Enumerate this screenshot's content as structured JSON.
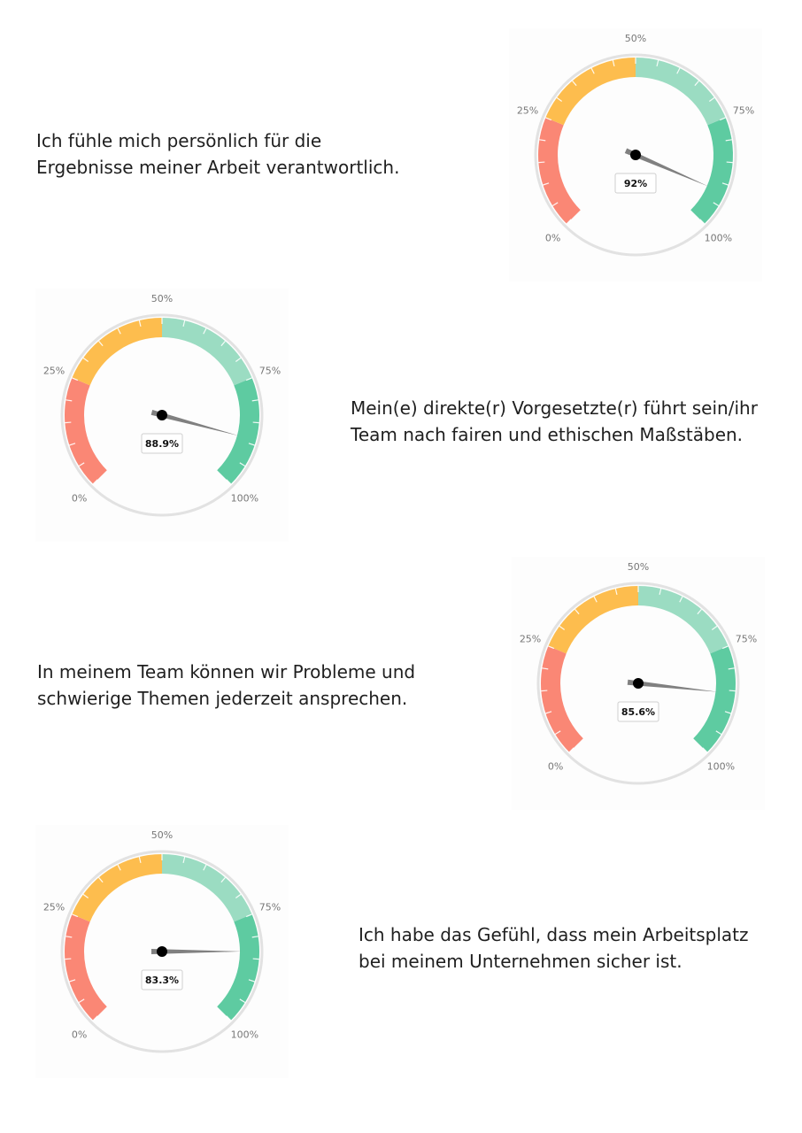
{
  "chart_data": [
    {
      "type": "gauge",
      "statement": [
        "Ich fühle mich persönlich für die",
        "Ergebnisse meiner Arbeit verantwortlich."
      ],
      "value": 92,
      "value_label": "92%",
      "range": [
        0,
        100
      ],
      "tick_labels": [
        "0%",
        "25%",
        "50%",
        "75%",
        "100%"
      ],
      "bands": [
        {
          "from": 0,
          "to": 25,
          "color": "#fa8775"
        },
        {
          "from": 25,
          "to": 50,
          "color": "#fdbd4e"
        },
        {
          "from": 50,
          "to": 75,
          "color": "#9bdcc2"
        },
        {
          "from": 75,
          "to": 100,
          "color": "#5ecba1"
        }
      ]
    },
    {
      "type": "gauge",
      "statement": [
        "Mein(e) direkte(r) Vorgesetzte(r) führt sein/ihr",
        "Team nach fairen und ethischen Maßstäben."
      ],
      "value": 88.9,
      "value_label": "88.9%",
      "range": [
        0,
        100
      ],
      "tick_labels": [
        "0%",
        "25%",
        "50%",
        "75%",
        "100%"
      ],
      "bands": [
        {
          "from": 0,
          "to": 25,
          "color": "#fa8775"
        },
        {
          "from": 25,
          "to": 50,
          "color": "#fdbd4e"
        },
        {
          "from": 50,
          "to": 75,
          "color": "#9bdcc2"
        },
        {
          "from": 75,
          "to": 100,
          "color": "#5ecba1"
        }
      ]
    },
    {
      "type": "gauge",
      "statement": [
        "In meinem Team können wir Probleme und",
        "schwierige Themen jederzeit ansprechen."
      ],
      "value": 85.6,
      "value_label": "85.6%",
      "range": [
        0,
        100
      ],
      "tick_labels": [
        "0%",
        "25%",
        "50%",
        "75%",
        "100%"
      ],
      "bands": [
        {
          "from": 0,
          "to": 25,
          "color": "#fa8775"
        },
        {
          "from": 25,
          "to": 50,
          "color": "#fdbd4e"
        },
        {
          "from": 50,
          "to": 75,
          "color": "#9bdcc2"
        },
        {
          "from": 75,
          "to": 100,
          "color": "#5ecba1"
        }
      ]
    },
    {
      "type": "gauge",
      "statement": [
        "Ich habe das Gefühl, dass mein Arbeitsplatz",
        "bei meinem Unternehmen sicher ist."
      ],
      "value": 83.3,
      "value_label": "83.3%",
      "range": [
        0,
        100
      ],
      "tick_labels": [
        "0%",
        "25%",
        "50%",
        "75%",
        "100%"
      ],
      "bands": [
        {
          "from": 0,
          "to": 25,
          "color": "#fa8775"
        },
        {
          "from": 25,
          "to": 50,
          "color": "#fdbd4e"
        },
        {
          "from": 50,
          "to": 75,
          "color": "#9bdcc2"
        },
        {
          "from": 75,
          "to": 100,
          "color": "#5ecba1"
        }
      ]
    }
  ]
}
